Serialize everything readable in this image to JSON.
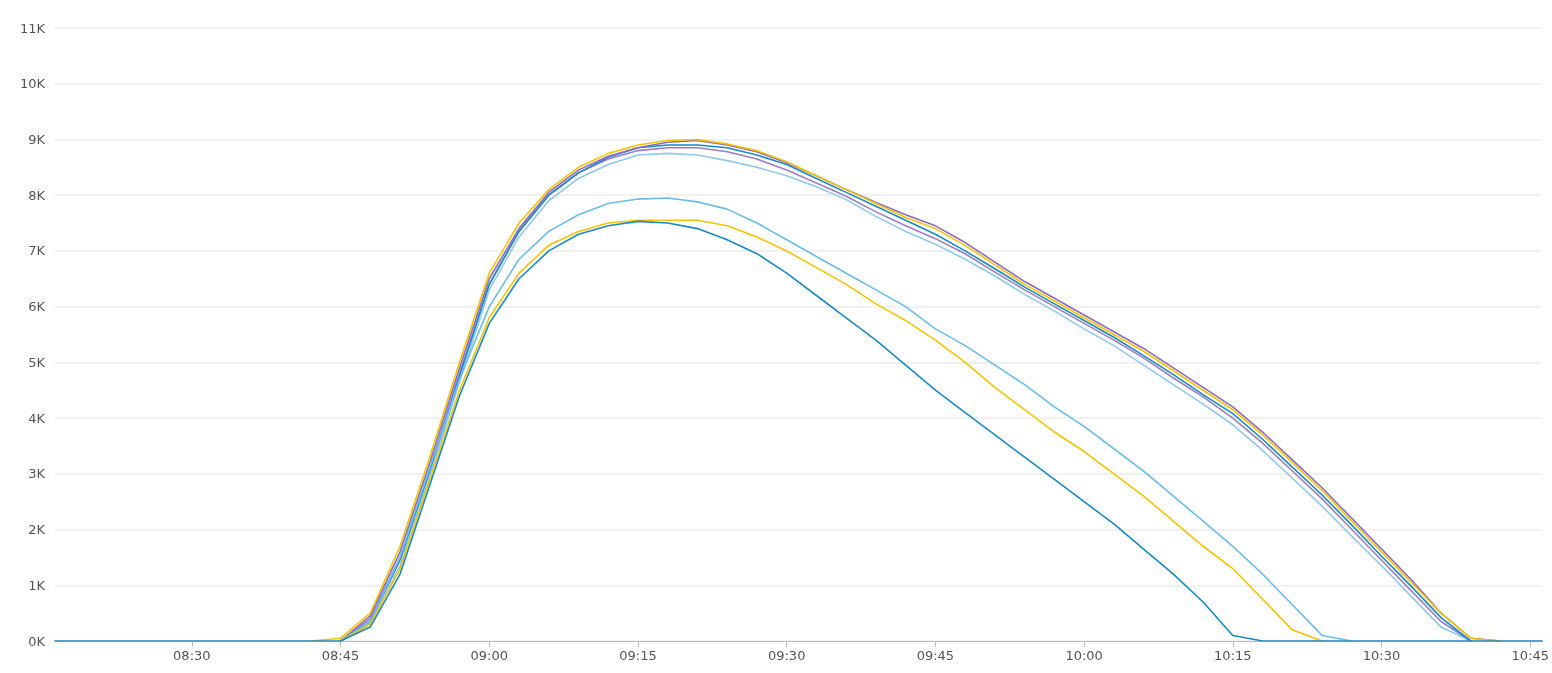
{
  "chart_data": {
    "type": "line",
    "x": [
      8.27,
      8.5,
      8.7,
      8.75,
      8.8,
      8.85,
      8.9,
      8.95,
      9.0,
      9.05,
      9.1,
      9.15,
      9.2,
      9.25,
      9.3,
      9.35,
      9.4,
      9.45,
      9.5,
      9.55,
      9.6,
      9.65,
      9.7,
      9.75,
      9.8,
      9.85,
      9.9,
      9.95,
      10.0,
      10.05,
      10.1,
      10.15,
      10.2,
      10.25,
      10.3,
      10.35,
      10.4,
      10.45,
      10.5,
      10.55,
      10.6,
      10.65,
      10.7,
      10.77
    ],
    "series": [
      {
        "color": "#8fc9ea",
        "values": [
          null,
          null,
          null,
          0,
          300,
          1350,
          2950,
          4650,
          6300,
          7250,
          7900,
          8300,
          8550,
          8720,
          8750,
          8720,
          8620,
          8500,
          8350,
          8150,
          7920,
          7620,
          7350,
          7120,
          6850,
          6550,
          6220,
          5920,
          5600,
          5300,
          4950,
          4600,
          4250,
          3880,
          3420,
          2920,
          2420,
          1880,
          1350,
          800,
          250,
          0,
          null,
          null
        ]
      },
      {
        "color": "#9a7fc4",
        "values": [
          null,
          null,
          null,
          0,
          400,
          1500,
          3100,
          4800,
          6400,
          7350,
          8000,
          8400,
          8650,
          8800,
          8850,
          8850,
          8780,
          8650,
          8450,
          8220,
          7980,
          7700,
          7450,
          7220,
          6950,
          6620,
          6300,
          6000,
          5700,
          5400,
          5080,
          4720,
          4380,
          4000,
          3550,
          3050,
          2550,
          2000,
          1450,
          900,
          350,
          0,
          null,
          null
        ]
      },
      {
        "color": "#1a8ac6",
        "values": [
          null,
          null,
          null,
          0,
          350,
          1450,
          3050,
          4750,
          6400,
          7350,
          8000,
          8400,
          8680,
          8850,
          8900,
          8900,
          8850,
          8720,
          8550,
          8300,
          8050,
          7800,
          7550,
          7300,
          7000,
          6680,
          6350,
          6050,
          5750,
          5450,
          5120,
          4780,
          4420,
          4080,
          3620,
          3120,
          2620,
          2080,
          1520,
          980,
          420,
          0,
          null,
          null
        ]
      },
      {
        "color": "#8e6bbf",
        "values": [
          null,
          null,
          null,
          0,
          450,
          1600,
          3200,
          4900,
          6500,
          7400,
          8050,
          8450,
          8700,
          8850,
          8950,
          8980,
          8900,
          8780,
          8580,
          8350,
          8100,
          7870,
          7650,
          7450,
          7150,
          6800,
          6450,
          6150,
          5850,
          5550,
          5250,
          4900,
          4550,
          4200,
          3750,
          3250,
          2750,
          2200,
          1650,
          1100,
          500,
          50,
          0,
          null
        ]
      },
      {
        "color": "#f5c400",
        "values": [
          null,
          null,
          0,
          50,
          500,
          1700,
          3300,
          5000,
          6600,
          7500,
          8100,
          8500,
          8750,
          8900,
          8980,
          9000,
          8920,
          8800,
          8600,
          8350,
          8100,
          7850,
          7600,
          7400,
          7100,
          6750,
          6400,
          6100,
          5800,
          5500,
          5200,
          4850,
          4500,
          4150,
          3700,
          3200,
          2700,
          2150,
          1600,
          1050,
          500,
          50,
          0,
          null
        ]
      },
      {
        "color": "#6bbde6",
        "values": [
          null,
          null,
          null,
          0,
          350,
          1500,
          3100,
          4700,
          6000,
          6850,
          7350,
          7650,
          7850,
          7930,
          7950,
          7880,
          7750,
          7500,
          7200,
          6900,
          6600,
          6300,
          6000,
          5600,
          5300,
          4950,
          4600,
          4200,
          3850,
          3450,
          3050,
          2600,
          2150,
          1700,
          1200,
          650,
          100,
          0,
          null,
          null,
          null,
          null,
          null,
          null
        ]
      },
      {
        "color": "#f5c400",
        "values": [
          null,
          null,
          null,
          0,
          300,
          1300,
          2900,
          4500,
          5800,
          6600,
          7100,
          7350,
          7500,
          7550,
          7550,
          7550,
          7450,
          7250,
          7000,
          6700,
          6400,
          6050,
          5750,
          5400,
          5000,
          4550,
          4150,
          3750,
          3400,
          3000,
          2600,
          2150,
          1700,
          1300,
          750,
          200,
          0,
          null,
          null,
          null,
          null,
          null,
          null,
          null
        ]
      },
      {
        "color": "#1a8ac6",
        "values": [
          0,
          0,
          0,
          0,
          250,
          1200,
          2800,
          4400,
          5700,
          6500,
          7000,
          7300,
          7450,
          7530,
          7500,
          7400,
          7200,
          6950,
          6600,
          6200,
          5800,
          5400,
          4950,
          4500,
          4100,
          3700,
          3300,
          2900,
          2500,
          2100,
          1650,
          1200,
          700,
          100,
          0,
          0,
          0,
          0,
          0,
          0,
          0,
          0,
          0,
          0
        ]
      }
    ],
    "xlim": [
      8.27,
      10.77
    ],
    "xticks": [
      {
        "value": 8.5,
        "label": "08:30"
      },
      {
        "value": 8.75,
        "label": "08:45"
      },
      {
        "value": 9,
        "label": "09:00"
      },
      {
        "value": 9.25,
        "label": "09:15"
      },
      {
        "value": 9.5,
        "label": "09:30"
      },
      {
        "value": 9.75,
        "label": "09:45"
      },
      {
        "value": 10,
        "label": "10:00"
      },
      {
        "value": 10.25,
        "label": "10:15"
      },
      {
        "value": 10.5,
        "label": "10:30"
      },
      {
        "value": 10.75,
        "label": "10:45"
      }
    ],
    "ylim": [
      0,
      11000
    ],
    "yticks": [
      {
        "value": 0,
        "label": "0K"
      },
      {
        "value": 1000,
        "label": "1K"
      },
      {
        "value": 2000,
        "label": "2K"
      },
      {
        "value": 3000,
        "label": "3K"
      },
      {
        "value": 4000,
        "label": "4K"
      },
      {
        "value": 5000,
        "label": "5K"
      },
      {
        "value": 6000,
        "label": "6K"
      },
      {
        "value": 7000,
        "label": "7K"
      },
      {
        "value": 8000,
        "label": "8K"
      },
      {
        "value": 9000,
        "label": "9K"
      },
      {
        "value": 10000,
        "label": "10K"
      },
      {
        "value": 11000,
        "label": "11K"
      }
    ],
    "grid": "y",
    "marker": "none",
    "line_style": "solid"
  }
}
